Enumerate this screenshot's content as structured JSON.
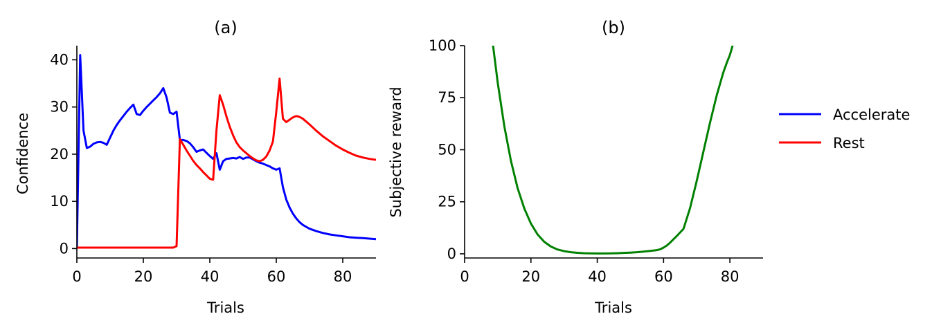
{
  "chart_data": [
    {
      "type": "line",
      "title": "(a)",
      "xlabel": "Trials",
      "ylabel": "Confidence",
      "xlim": [
        0,
        90
      ],
      "ylim": [
        -2,
        43
      ],
      "xticks": [
        0,
        20,
        40,
        60,
        80
      ],
      "yticks": [
        0,
        10,
        20,
        30,
        40
      ],
      "grid": false,
      "series": [
        {
          "name": "Accelerate",
          "color": "#0000ff",
          "x": [
            0,
            1,
            2,
            3,
            4,
            5,
            6,
            7,
            8,
            9,
            10,
            11,
            12,
            13,
            14,
            15,
            16,
            17,
            18,
            19,
            20,
            21,
            22,
            23,
            24,
            25,
            26,
            27,
            28,
            29,
            30,
            31,
            32,
            33,
            34,
            35,
            36,
            37,
            38,
            39,
            40,
            41,
            42,
            43,
            44,
            45,
            46,
            47,
            48,
            49,
            50,
            51,
            52,
            53,
            54,
            55,
            56,
            57,
            58,
            59,
            60,
            61,
            62,
            63,
            64,
            65,
            66,
            67,
            68,
            69,
            70,
            72,
            74,
            76,
            78,
            80,
            82,
            84,
            86,
            88,
            90
          ],
          "y": [
            0,
            41,
            25,
            21.3,
            21.6,
            22.2,
            22.5,
            22.6,
            22.4,
            22,
            23.5,
            25,
            26.2,
            27.2,
            28.1,
            29,
            29.8,
            30.5,
            28.5,
            28.3,
            29.2,
            30,
            30.7,
            31.4,
            32.1,
            32.9,
            34,
            32,
            28.8,
            28.5,
            29,
            23,
            23,
            22.8,
            22.3,
            21.5,
            20.5,
            20.8,
            21,
            20.3,
            19.6,
            19,
            20.2,
            16.7,
            18.5,
            19,
            19.1,
            19.2,
            19.1,
            19.4,
            19,
            19.3,
            19.3,
            18.9,
            18.5,
            18.2,
            18,
            17.7,
            17.4,
            17,
            16.7,
            17,
            13,
            10.4,
            8.7,
            7.4,
            6.4,
            5.6,
            5,
            4.6,
            4.2,
            3.7,
            3.3,
            3,
            2.8,
            2.6,
            2.4,
            2.3,
            2.2,
            2.1,
            2
          ]
        },
        {
          "name": "Rest",
          "color": "#ff0000",
          "x": [
            0,
            10,
            20,
            29,
            30,
            31,
            32,
            33,
            34,
            35,
            36,
            37,
            38,
            39,
            40,
            41,
            42,
            43,
            44,
            45,
            46,
            47,
            48,
            49,
            50,
            51,
            52,
            53,
            54,
            55,
            56,
            57,
            58,
            59,
            60,
            61,
            62,
            63,
            64,
            65,
            66,
            67,
            68,
            70,
            72,
            74,
            76,
            78,
            80,
            82,
            84,
            86,
            88,
            90
          ],
          "y": [
            0.2,
            0.2,
            0.2,
            0.2,
            0.5,
            23.2,
            22,
            20.8,
            19.7,
            18.6,
            17.7,
            17,
            16.2,
            15.5,
            14.8,
            14.6,
            25,
            32.5,
            30.5,
            28,
            25.8,
            24,
            22.5,
            21.5,
            20.8,
            20.2,
            19.6,
            19.1,
            18.7,
            18.5,
            18.8,
            19.5,
            20.8,
            22.7,
            29,
            36,
            27.5,
            26.8,
            27.3,
            27.8,
            28.1,
            27.9,
            27.5,
            26.3,
            25,
            23.8,
            22.8,
            21.8,
            21,
            20.3,
            19.7,
            19.3,
            19,
            18.8
          ]
        }
      ]
    },
    {
      "type": "line",
      "title": "(b)",
      "xlabel": "Trials",
      "ylabel": "Subjective reward",
      "xlim": [
        0,
        90
      ],
      "ylim": [
        -2,
        100
      ],
      "xticks": [
        0,
        20,
        40,
        60,
        80
      ],
      "yticks": [
        0,
        25,
        50,
        75,
        100
      ],
      "grid": false,
      "series": [
        {
          "name": "Subjective reward",
          "color": "#008000",
          "x": [
            8.5,
            10,
            12,
            14,
            16,
            18,
            20,
            22,
            24,
            26,
            28,
            30,
            32,
            34,
            36,
            38,
            40,
            42,
            44,
            46,
            48,
            50,
            52,
            54,
            56,
            58,
            59,
            60,
            61,
            62,
            64,
            66,
            68,
            70,
            72,
            74,
            76,
            78,
            79,
            80,
            81
          ],
          "y": [
            101,
            82,
            61,
            44.5,
            31.5,
            21.8,
            14.5,
            9.3,
            5.8,
            3.5,
            2.1,
            1.3,
            0.8,
            0.5,
            0.3,
            0.2,
            0.15,
            0.15,
            0.2,
            0.3,
            0.45,
            0.6,
            0.8,
            1.1,
            1.4,
            1.8,
            2.2,
            3.0,
            4.0,
            5.4,
            8.6,
            12,
            22,
            35,
            49,
            63,
            76,
            87,
            91.5,
            95.5,
            101
          ]
        }
      ]
    }
  ],
  "legend": {
    "placement": "right",
    "entries": [
      {
        "label": "Accelerate",
        "color": "#0000ff"
      },
      {
        "label": "Rest",
        "color": "#ff0000"
      }
    ]
  }
}
